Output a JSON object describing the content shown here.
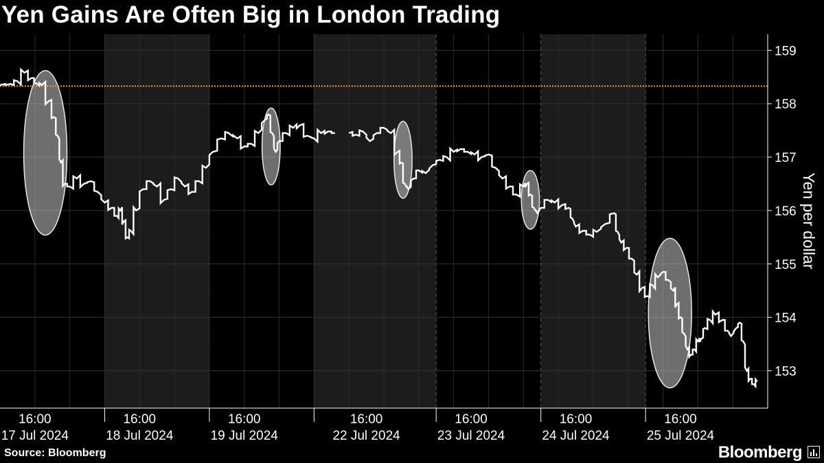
{
  "chart_data": {
    "type": "line",
    "title": "Yen Gains Are Often Big in London Trading",
    "ylabel": "Yen per dollar",
    "xlabel": "",
    "ylim": [
      152.3,
      159.3
    ],
    "yticks": [
      153,
      154,
      155,
      156,
      157,
      158,
      159
    ],
    "xticks": [
      {
        "time": "16:00",
        "date": "17 Jul 2024"
      },
      {
        "time": "16:00",
        "date": "18 Jul 2024"
      },
      {
        "time": "16:00",
        "date": "19 Jul 2024"
      },
      {
        "time": "16:00",
        "date": "22 Jul 2024"
      },
      {
        "time": "16:00",
        "date": "23 Jul 2024"
      },
      {
        "time": "16:00",
        "date": "24 Jul 2024"
      },
      {
        "time": "16:00",
        "date": "25 Jul 2024"
      }
    ],
    "reference_line": {
      "value": 158.33,
      "color": "#f5a623"
    },
    "series": [
      {
        "color": "#ffffff",
        "segments": [
          [
            [
              0.0,
              158.35
            ],
            [
              0.3,
              158.37
            ],
            [
              0.5,
              158.42
            ],
            [
              0.7,
              158.58
            ],
            [
              0.9,
              158.48
            ],
            [
              1.05,
              158.38
            ],
            [
              1.2,
              158.35
            ],
            [
              1.4,
              158.05
            ],
            [
              1.55,
              157.75
            ],
            [
              1.65,
              157.4
            ],
            [
              1.75,
              156.9
            ],
            [
              1.85,
              156.5
            ],
            [
              2.0,
              156.45
            ],
            [
              2.2,
              156.6
            ],
            [
              2.4,
              156.5
            ],
            [
              2.6,
              156.55
            ],
            [
              2.8,
              156.35
            ],
            [
              3.0,
              156.15
            ],
            [
              3.2,
              156.05
            ],
            [
              3.35,
              155.9
            ],
            [
              3.45,
              156.0
            ],
            [
              3.55,
              155.8
            ],
            [
              3.65,
              155.5
            ],
            [
              3.75,
              155.62
            ],
            [
              3.9,
              156.0
            ],
            [
              4.1,
              156.4
            ],
            [
              4.3,
              156.55
            ],
            [
              4.5,
              156.45
            ],
            [
              4.7,
              156.2
            ],
            [
              4.9,
              156.4
            ],
            [
              5.1,
              156.6
            ],
            [
              5.3,
              156.45
            ],
            [
              5.5,
              156.35
            ],
            [
              5.7,
              156.55
            ],
            [
              5.9,
              156.8
            ],
            [
              6.1,
              157.1
            ],
            [
              6.35,
              157.35
            ],
            [
              6.55,
              157.45
            ],
            [
              6.8,
              157.35
            ],
            [
              7.0,
              157.2
            ],
            [
              7.2,
              157.25
            ],
            [
              7.4,
              157.45
            ],
            [
              7.6,
              157.7
            ],
            [
              7.7,
              157.8
            ],
            [
              7.8,
              157.45
            ],
            [
              7.9,
              157.1
            ],
            [
              8.0,
              157.3
            ],
            [
              8.2,
              157.45
            ],
            [
              8.4,
              157.55
            ],
            [
              8.6,
              157.6
            ],
            [
              8.8,
              157.4
            ],
            [
              9.0,
              157.35
            ],
            [
              9.2,
              157.45
            ],
            [
              9.4,
              157.48
            ],
            [
              9.6,
              157.45
            ]
          ],
          [
            [
              10.0,
              157.45
            ],
            [
              10.2,
              157.42
            ],
            [
              10.4,
              157.48
            ],
            [
              10.6,
              157.3
            ],
            [
              10.8,
              157.45
            ],
            [
              11.0,
              157.55
            ],
            [
              11.2,
              157.45
            ],
            [
              11.4,
              157.1
            ],
            [
              11.5,
              156.9
            ],
            [
              11.6,
              156.5
            ],
            [
              11.7,
              156.4
            ],
            [
              11.85,
              156.6
            ],
            [
              12.0,
              156.75
            ],
            [
              12.2,
              156.7
            ],
            [
              12.4,
              156.85
            ],
            [
              12.6,
              156.95
            ],
            [
              12.8,
              157.0
            ],
            [
              13.0,
              157.1
            ],
            [
              13.2,
              157.15
            ],
            [
              13.4,
              157.1
            ],
            [
              13.6,
              157.05
            ],
            [
              13.8,
              157.0
            ],
            [
              14.0,
              157.05
            ],
            [
              14.2,
              156.8
            ],
            [
              14.4,
              156.6
            ],
            [
              14.6,
              156.45
            ],
            [
              14.8,
              156.3
            ],
            [
              15.0,
              156.45
            ],
            [
              15.1,
              156.5
            ],
            [
              15.2,
              156.3
            ],
            [
              15.3,
              156.05
            ],
            [
              15.4,
              155.95
            ],
            [
              15.5,
              156.05
            ],
            [
              15.7,
              156.2
            ],
            [
              15.9,
              156.15
            ],
            [
              16.1,
              156.1
            ],
            [
              16.3,
              156.05
            ],
            [
              16.4,
              155.85
            ],
            [
              16.5,
              155.7
            ],
            [
              16.7,
              155.62
            ],
            [
              16.9,
              155.55
            ],
            [
              17.1,
              155.6
            ],
            [
              17.35,
              155.75
            ],
            [
              17.6,
              155.95
            ],
            [
              17.7,
              155.6
            ],
            [
              17.8,
              155.4
            ],
            [
              17.95,
              155.3
            ],
            [
              18.1,
              155.1
            ],
            [
              18.25,
              154.8
            ],
            [
              18.4,
              154.55
            ],
            [
              18.55,
              154.4
            ],
            [
              18.7,
              154.6
            ],
            [
              18.85,
              154.75
            ],
            [
              19.0,
              154.85
            ],
            [
              19.15,
              154.7
            ],
            [
              19.3,
              154.5
            ],
            [
              19.4,
              154.25
            ],
            [
              19.5,
              154.0
            ],
            [
              19.6,
              153.7
            ],
            [
              19.7,
              153.4
            ],
            [
              19.8,
              153.3
            ],
            [
              19.9,
              153.4
            ],
            [
              20.0,
              153.55
            ],
            [
              20.1,
              153.6
            ],
            [
              20.2,
              153.8
            ],
            [
              20.35,
              153.95
            ],
            [
              20.5,
              154.05
            ],
            [
              20.7,
              153.95
            ],
            [
              20.85,
              153.75
            ],
            [
              20.95,
              153.65
            ],
            [
              21.1,
              153.8
            ],
            [
              21.2,
              153.9
            ],
            [
              21.3,
              153.55
            ],
            [
              21.4,
              153.0
            ],
            [
              21.5,
              152.85
            ],
            [
              21.6,
              152.75
            ],
            [
              21.7,
              152.8
            ]
          ]
        ]
      }
    ],
    "highlights": [
      {
        "x": 1.3,
        "y": 157.08,
        "rx": 0.62,
        "ry": 1.54
      },
      {
        "x": 7.77,
        "y": 157.2,
        "rx": 0.26,
        "ry": 0.72
      },
      {
        "x": 11.55,
        "y": 156.95,
        "rx": 0.26,
        "ry": 0.72
      },
      {
        "x": 15.2,
        "y": 156.2,
        "rx": 0.26,
        "ry": 0.55
      },
      {
        "x": 19.2,
        "y": 154.08,
        "rx": 0.62,
        "ry": 1.4
      }
    ]
  },
  "footer": {
    "source": "Source: Bloomberg",
    "brand": "Bloomberg"
  }
}
